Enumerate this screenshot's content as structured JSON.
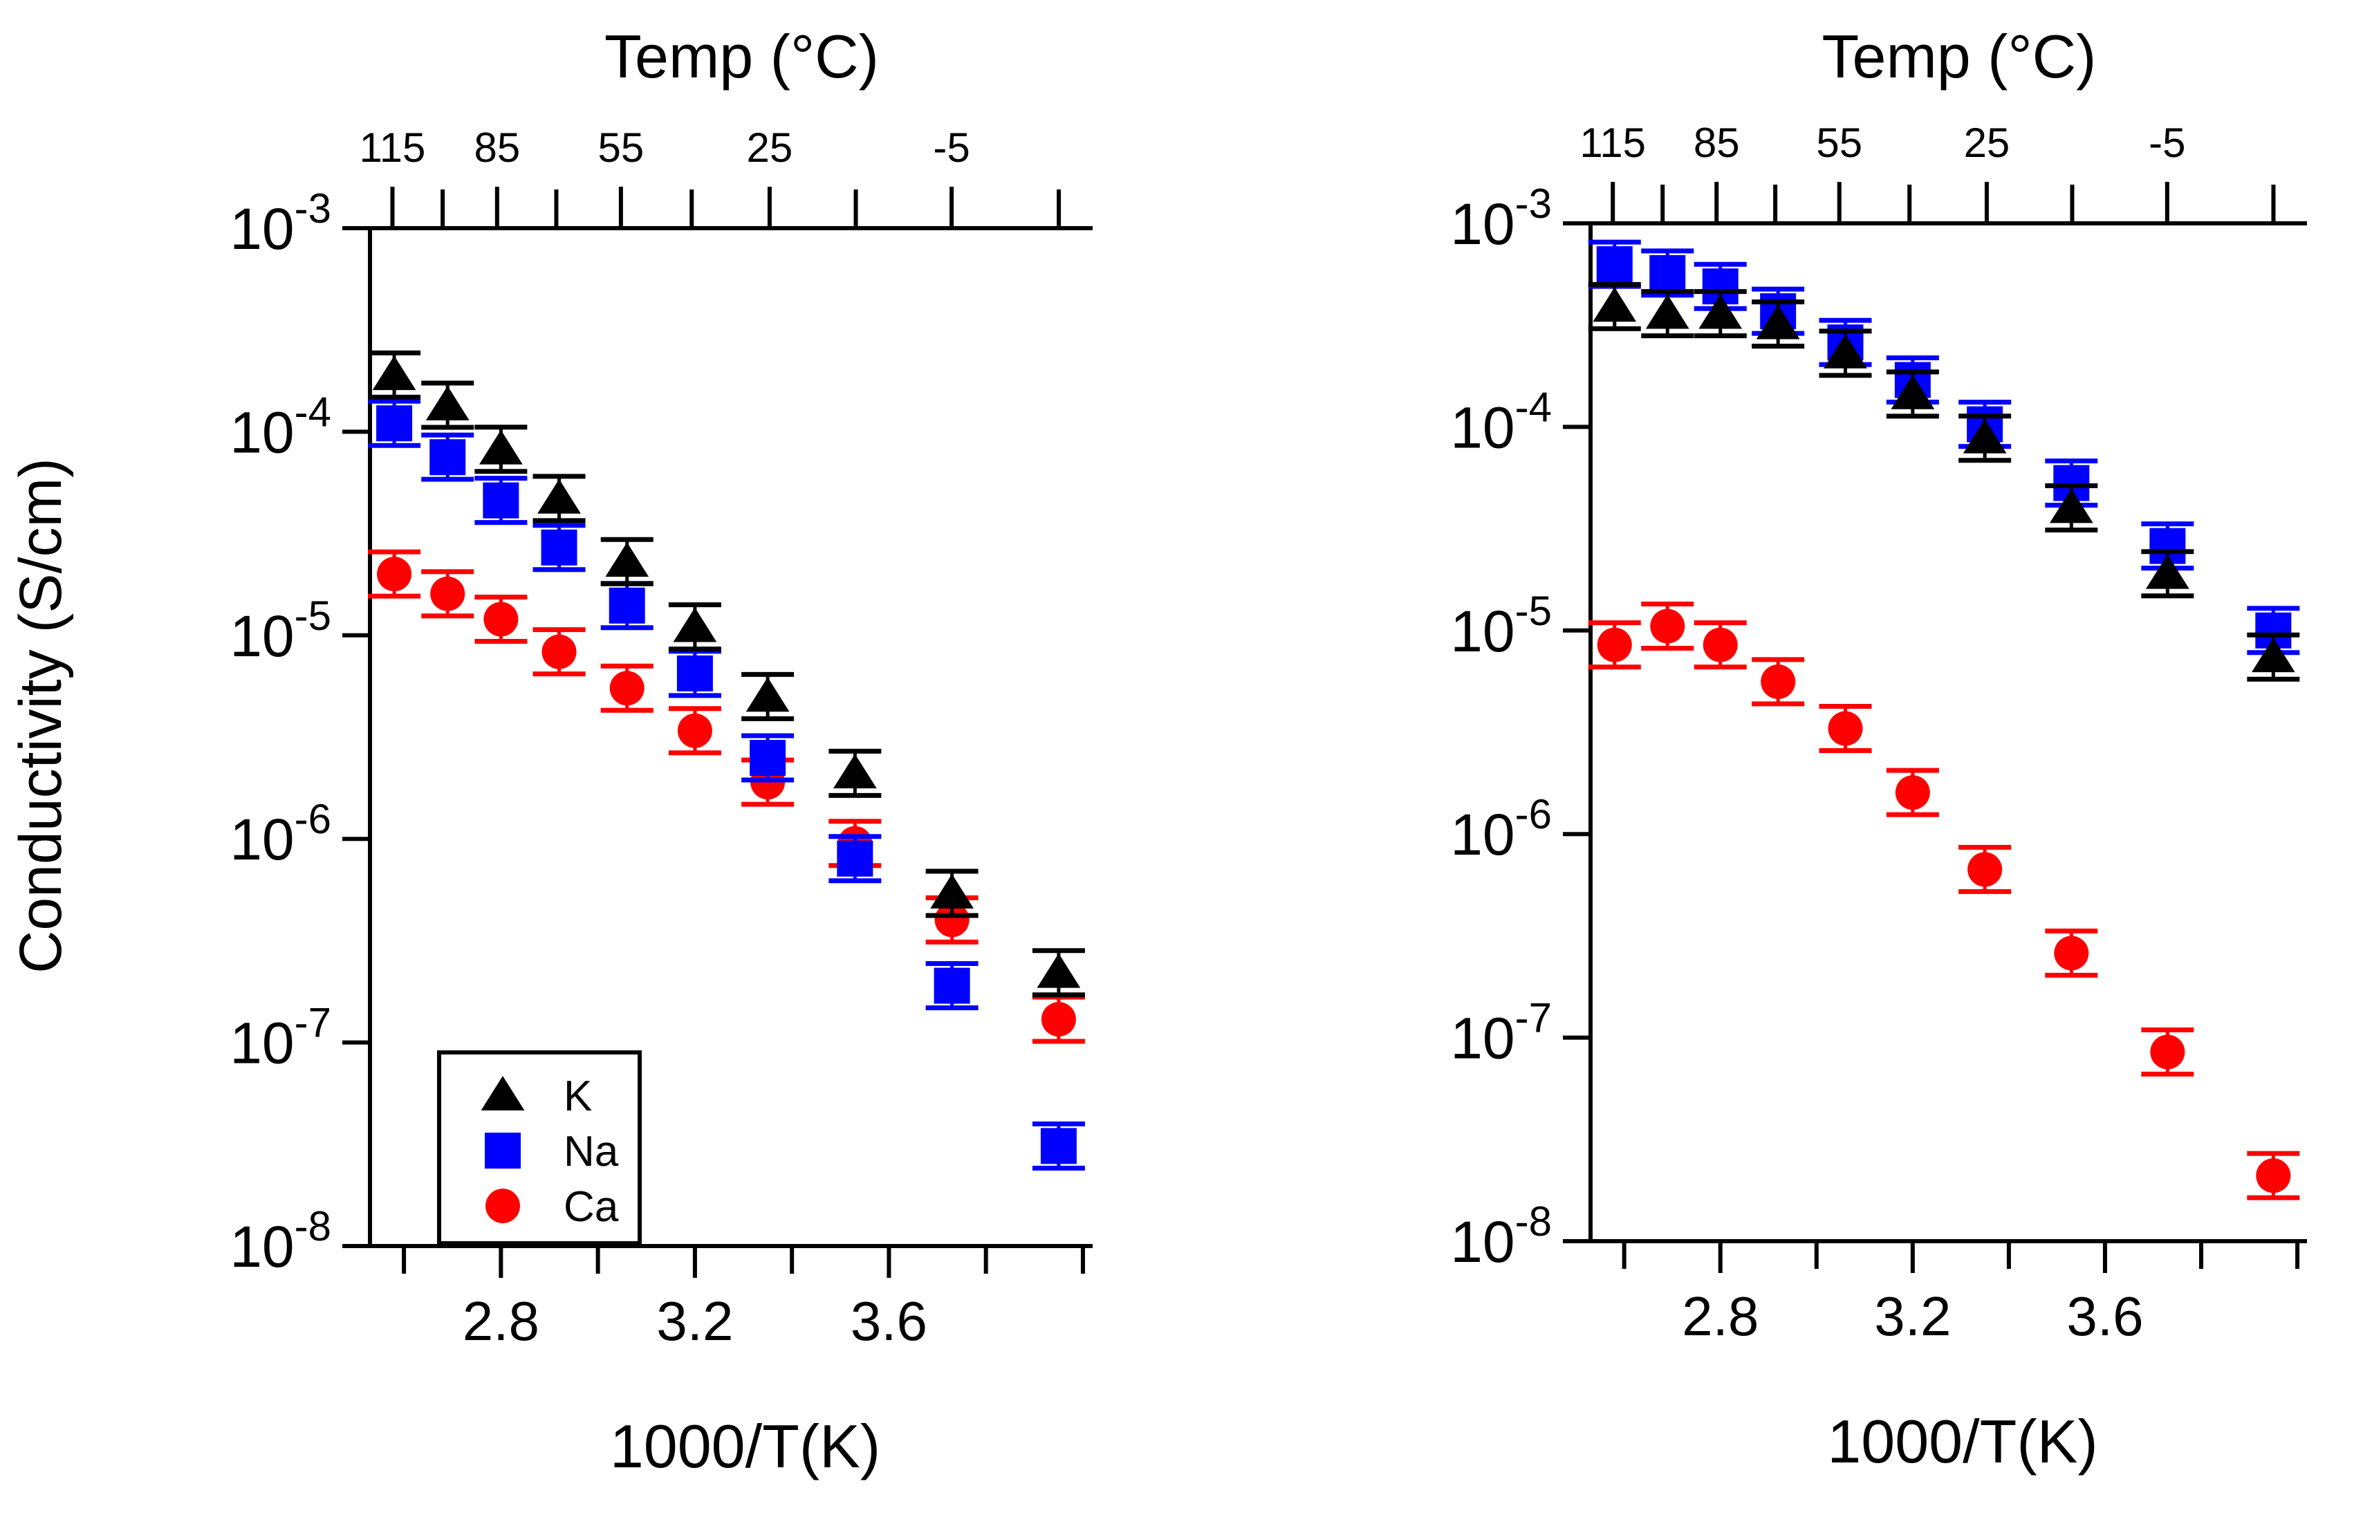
{
  "colors": {
    "K": "#000000",
    "Na": "#0000ff",
    "Ca": "#ff0000",
    "axis": "#000000"
  },
  "marker_shapes": {
    "K": "triangle",
    "Na": "square",
    "Ca": "circle"
  },
  "shared_text": {
    "ylabel": "Conductivity (S/cm)"
  },
  "chart_data": [
    {
      "type": "scatter",
      "title": "",
      "xlabel": "1000/T(K)",
      "ylabel": "Conductivity (S/cm)",
      "top_axis_label": "Temp (°C)",
      "top_axis_ticks": [
        {
          "label": "115",
          "temp_c": 115
        },
        {
          "label": "85",
          "temp_c": 85
        },
        {
          "label": "55",
          "temp_c": 55
        },
        {
          "label": "25",
          "temp_c": 25
        },
        {
          "label": "-5",
          "temp_c": -5
        }
      ],
      "x_scale": "reciprocal_temperature",
      "y_scale": "log",
      "xlim": [
        2.53,
        4.02
      ],
      "ylim_exp": [
        -8,
        -3
      ],
      "x_ticks": [
        2.8,
        3.2,
        3.6
      ],
      "x_tick_labels": [
        "2.8",
        "3.2",
        "3.6"
      ],
      "y_ticks": [
        {
          "base": "10",
          "exp": "-3",
          "value": 0.001
        },
        {
          "base": "10",
          "exp": "-4",
          "value": 0.0001
        },
        {
          "base": "10",
          "exp": "-5",
          "value": 1e-05
        },
        {
          "base": "10",
          "exp": "-6",
          "value": 1e-06
        },
        {
          "base": "10",
          "exp": "-7",
          "value": 1e-07
        },
        {
          "base": "10",
          "exp": "-8",
          "value": 1e-08
        }
      ],
      "legend": {
        "placement": "bottom-left",
        "entries": [
          {
            "label": "K",
            "series": "K"
          },
          {
            "label": "Na",
            "series": "Na"
          },
          {
            "label": "Ca",
            "series": "Ca"
          }
        ]
      },
      "x": [
        2.58,
        2.69,
        2.8,
        2.92,
        3.06,
        3.2,
        3.35,
        3.53,
        3.73,
        3.95
      ],
      "series": [
        {
          "name": "K",
          "values": [
            0.00019,
            0.000135,
            8.2e-05,
            4.7e-05,
            2.3e-05,
            1.1e-05,
            5e-06,
            2.1e-06,
            5.4e-07,
            2.2e-07
          ]
        },
        {
          "name": "Na",
          "values": [
            0.00011,
            7.5e-05,
            4.6e-05,
            2.7e-05,
            1.4e-05,
            6.5e-06,
            2.5e-06,
            8e-07,
            1.9e-07,
            3.1e-08
          ]
        },
        {
          "name": "Ca",
          "values": [
            2e-05,
            1.6e-05,
            1.2e-05,
            8.3e-06,
            5.5e-06,
            3.4e-06,
            1.9e-06,
            9.5e-07,
            4e-07,
            1.3e-07
          ]
        }
      ]
    },
    {
      "type": "scatter",
      "title": "",
      "xlabel": "1000/T(K)",
      "ylabel": "",
      "top_axis_label": "Temp (°C)",
      "top_axis_ticks": [
        {
          "label": "115",
          "temp_c": 115
        },
        {
          "label": "85",
          "temp_c": 85
        },
        {
          "label": "55",
          "temp_c": 55
        },
        {
          "label": "25",
          "temp_c": 25
        },
        {
          "label": "-5",
          "temp_c": -5
        }
      ],
      "x_scale": "reciprocal_temperature",
      "y_scale": "log",
      "xlim": [
        2.53,
        4.02
      ],
      "ylim_exp": [
        -8,
        -3
      ],
      "x_ticks": [
        2.8,
        3.2,
        3.6
      ],
      "x_tick_labels": [
        "2.8",
        "3.2",
        "3.6"
      ],
      "y_ticks": [
        {
          "base": "10",
          "exp": "-3",
          "value": 0.001
        },
        {
          "base": "10",
          "exp": "-4",
          "value": 0.0001
        },
        {
          "base": "10",
          "exp": "-5",
          "value": 1e-05
        },
        {
          "base": "10",
          "exp": "-6",
          "value": 1e-06
        },
        {
          "base": "10",
          "exp": "-7",
          "value": 1e-07
        },
        {
          "base": "10",
          "exp": "-8",
          "value": 1e-08
        }
      ],
      "x": [
        2.58,
        2.69,
        2.8,
        2.92,
        3.06,
        3.2,
        3.35,
        3.53,
        3.73,
        3.95
      ],
      "series": [
        {
          "name": "K",
          "values": [
            0.00039,
            0.00036,
            0.00036,
            0.00032,
            0.00023,
            0.000145,
            8.8e-05,
            4e-05,
            1.9e-05,
            7.4e-06
          ]
        },
        {
          "name": "Na",
          "values": [
            0.00063,
            0.00057,
            0.00049,
            0.00037,
            0.00026,
            0.00017,
            0.000103,
            5.3e-05,
            2.6e-05,
            1e-05
          ]
        },
        {
          "name": "Ca",
          "values": [
            8.5e-06,
            1.05e-05,
            8.5e-06,
            5.6e-06,
            3.3e-06,
            1.6e-06,
            6.7e-07,
            2.6e-07,
            8.5e-08,
            2.1e-08
          ]
        }
      ]
    }
  ]
}
